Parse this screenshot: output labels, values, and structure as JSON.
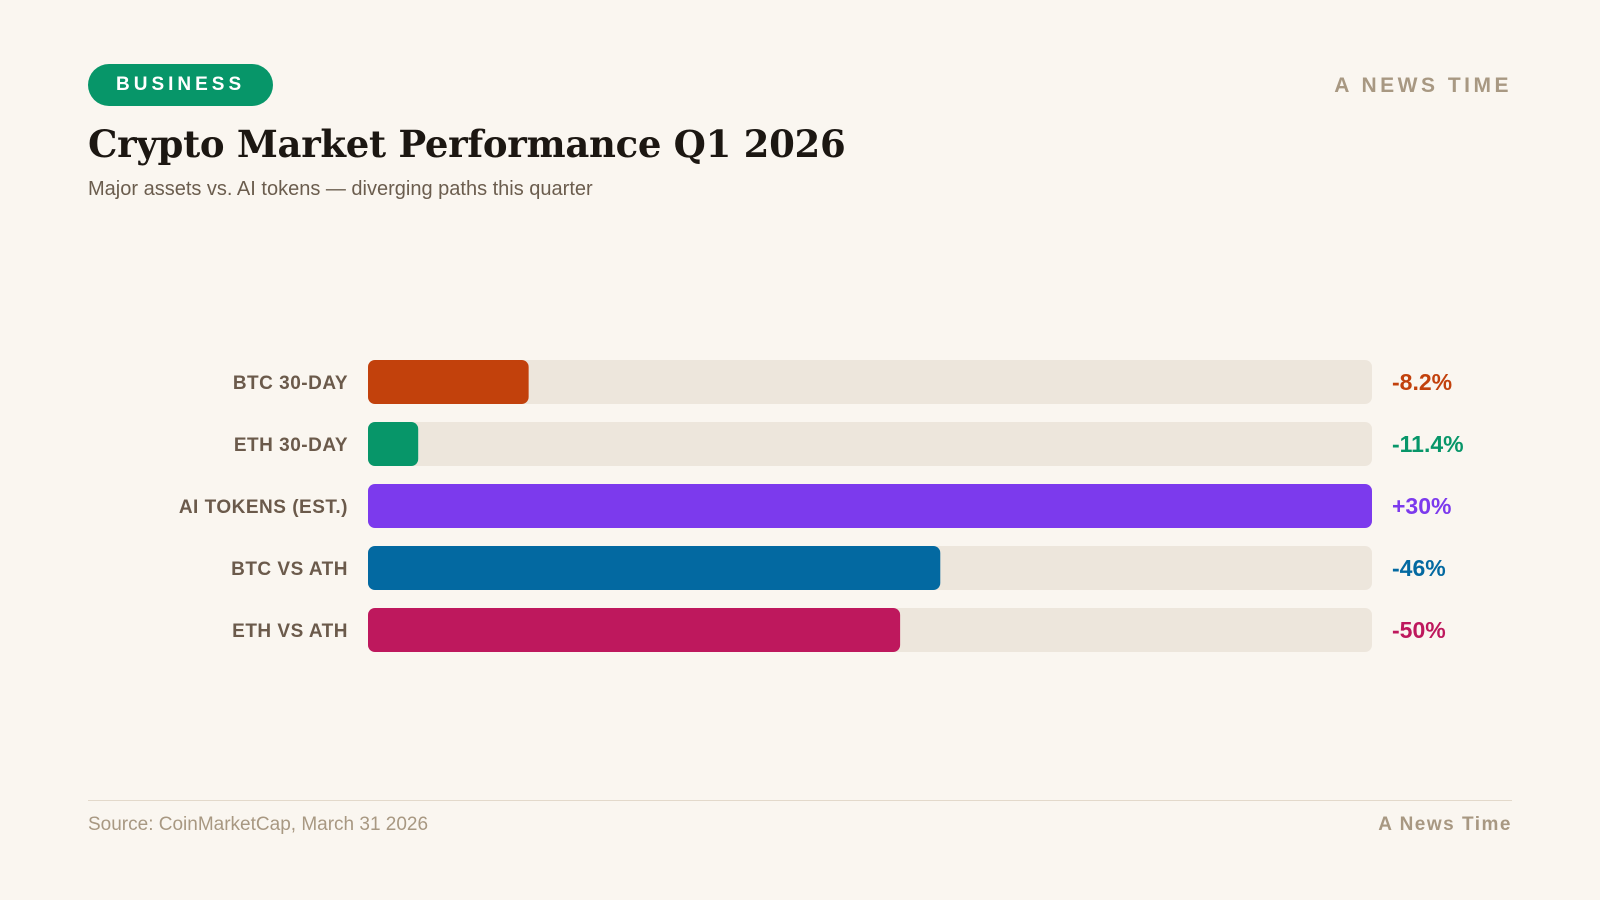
{
  "header": {
    "badge": "BUSINESS",
    "brand": "A NEWS TIME",
    "title": "Crypto Market Performance Q1 2026",
    "subtitle": "Major assets vs. AI tokens — diverging paths this quarter"
  },
  "footer": {
    "source": "Source: CoinMarketCap, March 31 2026",
    "brand": "A News Time"
  },
  "colors": {
    "badge": "#079669",
    "track": "#ede6dc",
    "background": "#faf6f0"
  },
  "chart_data": {
    "type": "bar",
    "orientation": "horizontal",
    "title": "Crypto Market Performance Q1 2026",
    "subtitle": "Major assets vs. AI tokens — diverging paths this quarter",
    "grid": false,
    "categories": [
      "BTC 30-DAY",
      "ETH 30-DAY",
      "AI TOKENS (EST.)",
      "BTC VS ATH",
      "ETH VS ATH"
    ],
    "value_labels": [
      "-8.2%",
      "-11.4%",
      "+30%",
      "-46%",
      "-50%"
    ],
    "values": [
      -8.2,
      -11.4,
      30,
      -46,
      -50
    ],
    "fill_fractions": [
      0.16,
      0.05,
      1.0,
      0.57,
      0.53
    ],
    "colors": [
      "#c2410c",
      "#079669",
      "#7c3aed",
      "#0369a1",
      "#be185d"
    ]
  }
}
